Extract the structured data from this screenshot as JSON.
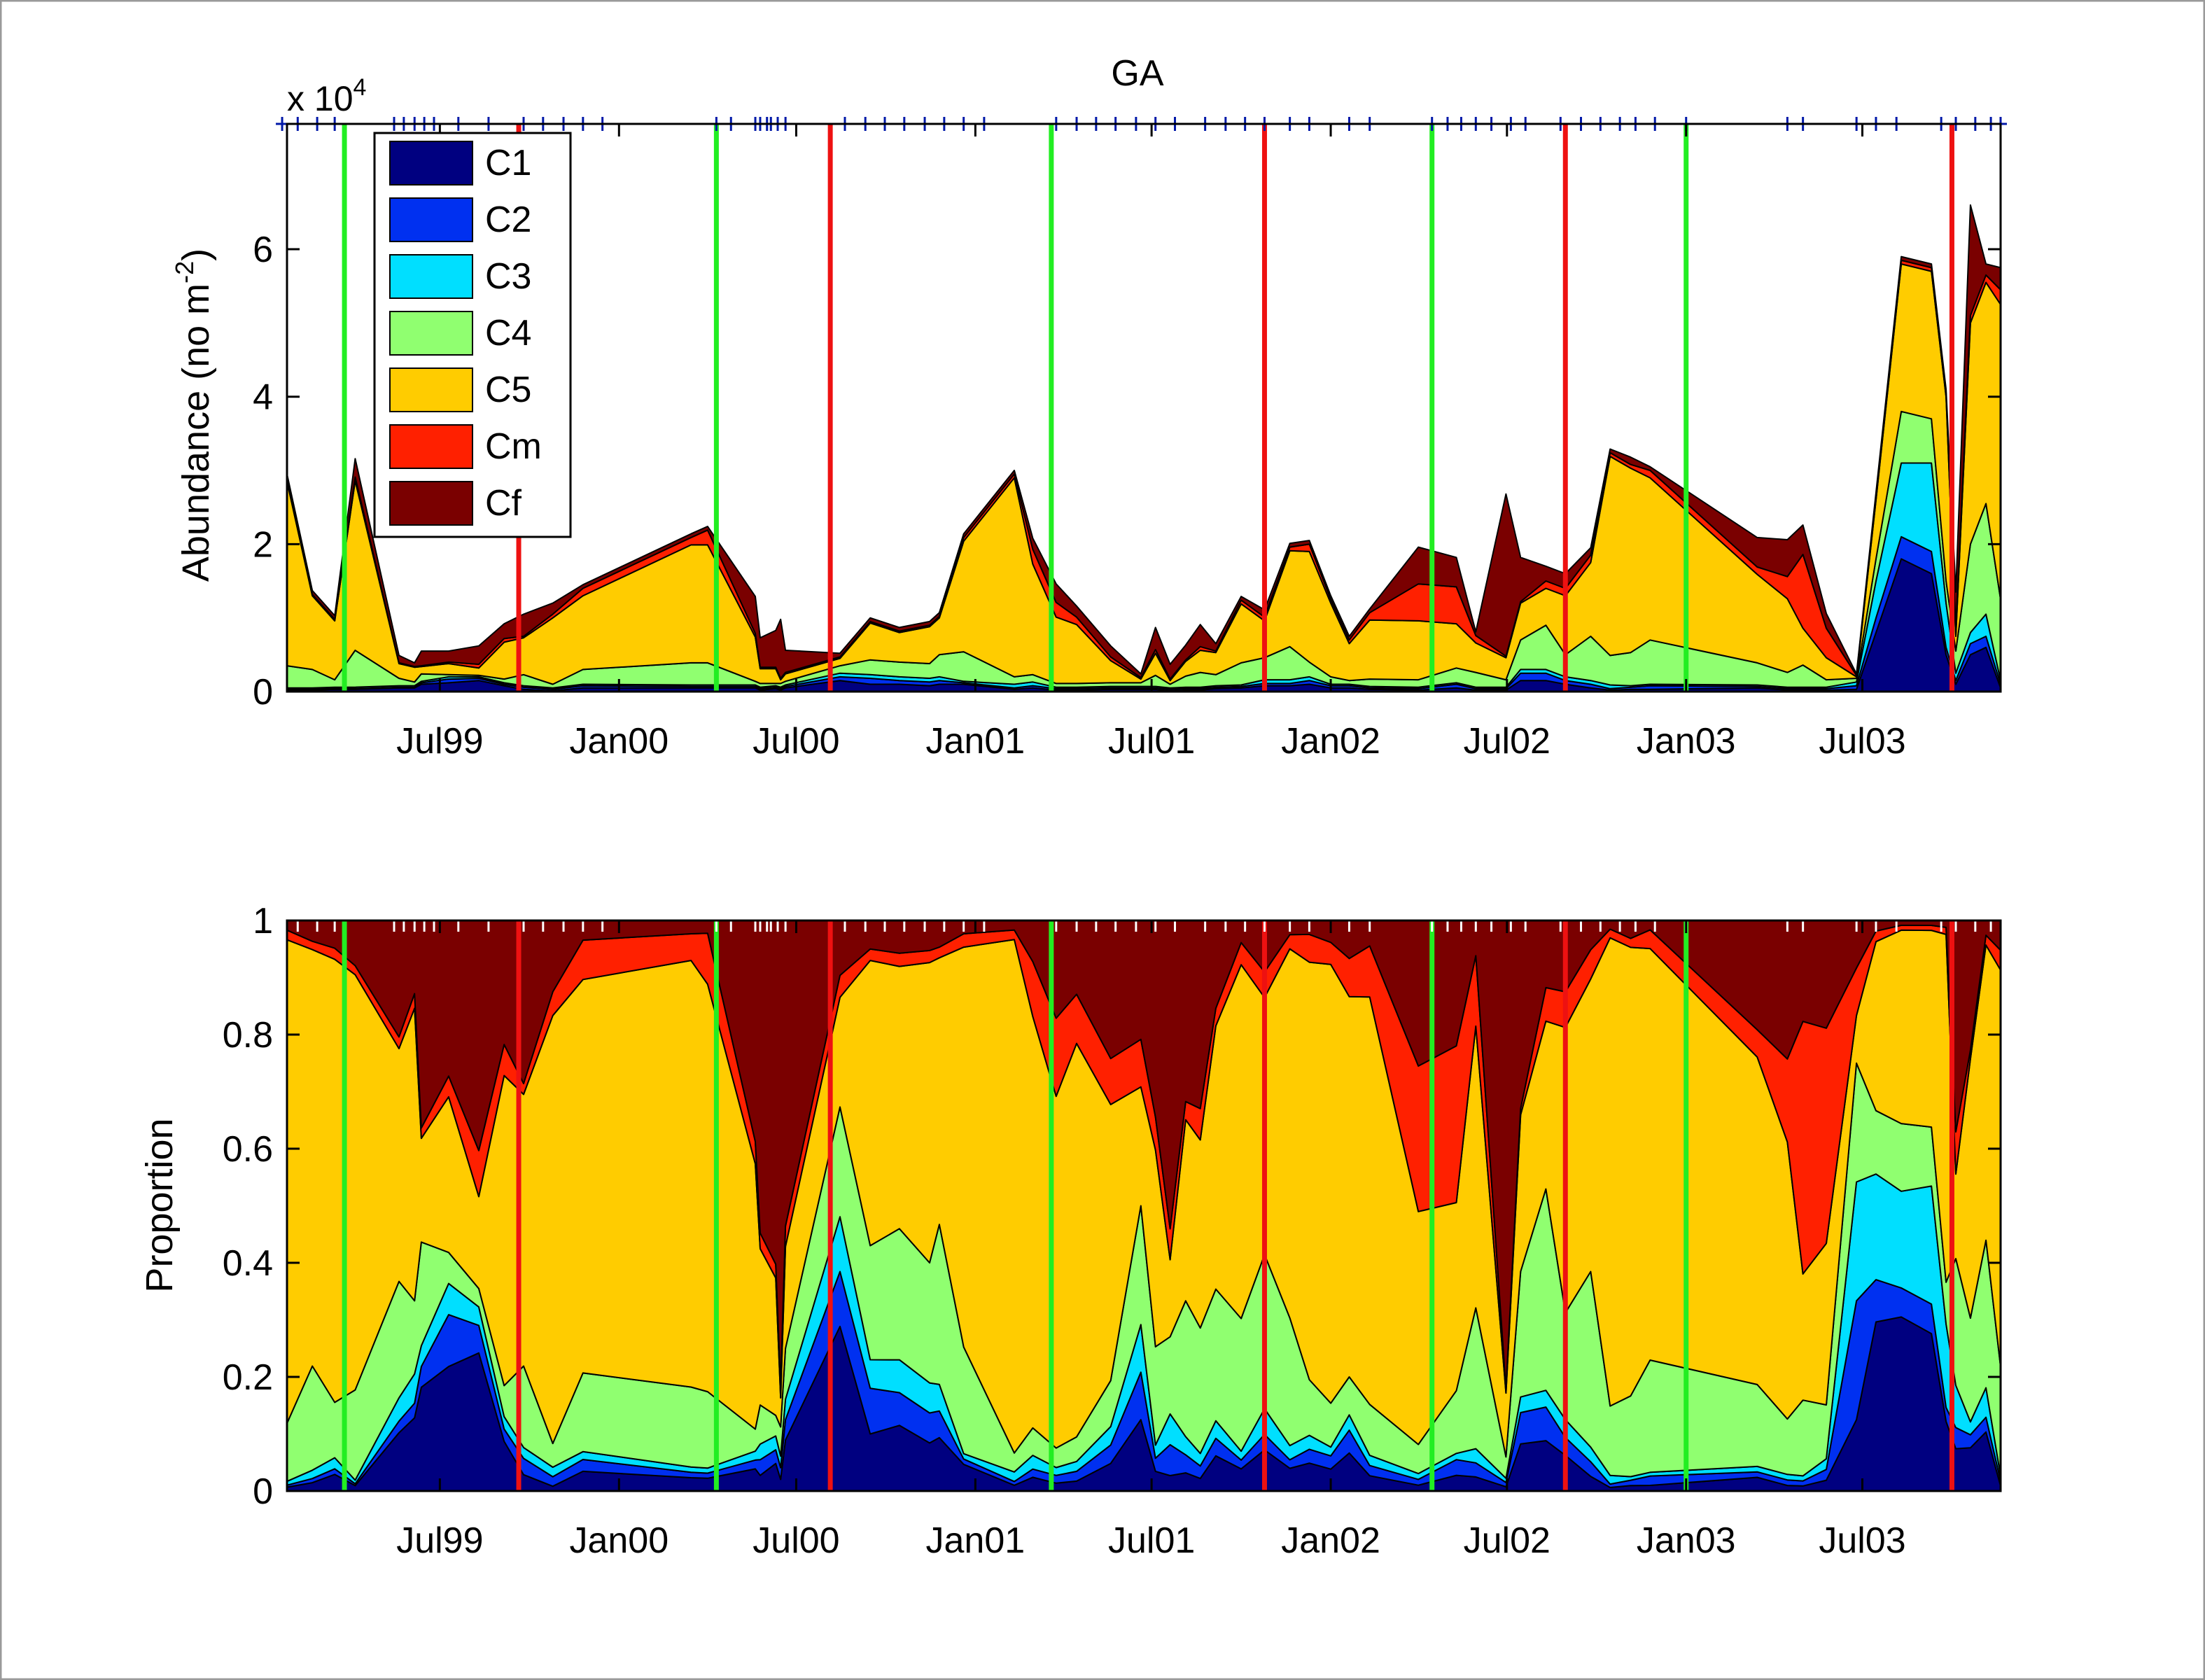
{
  "chart_data": [
    {
      "type": "area",
      "stacked": true,
      "title": "GA",
      "ylabel_main": "Abundance (no m",
      "ylabel_exp": "-2",
      "ylabel_close": ")",
      "exponent_prefix": "x 10",
      "exponent_power": "4",
      "x_range": [
        "1999-01-25",
        "2003-11-20"
      ],
      "ylim": [
        0,
        7.7
      ],
      "yticks": [
        0,
        2,
        4,
        6
      ],
      "ytick_labels": [
        "0",
        "2",
        "4",
        "6"
      ],
      "xticks": [
        "1999-07-01",
        "2000-01-01",
        "2000-07-01",
        "2001-01-01",
        "2001-07-01",
        "2002-01-01",
        "2002-07-01",
        "2003-01-01",
        "2003-07-01"
      ],
      "xtick_labels": [
        "Jul99",
        "Jan00",
        "Jul00",
        "Jan01",
        "Jul01",
        "Jan02",
        "Jul02",
        "Jan03",
        "Jul03"
      ],
      "x": [
        "1999-01-25",
        "1999-02-20",
        "1999-03-15",
        "1999-04-05",
        "1999-05-20",
        "1999-06-05",
        "1999-06-12",
        "1999-07-10",
        "1999-08-10",
        "1999-09-05",
        "1999-09-25",
        "1999-10-25",
        "1999-11-25",
        "2000-03-15",
        "2000-04-01",
        "2000-05-20",
        "2000-05-25",
        "2000-06-10",
        "2000-06-15",
        "2000-06-20",
        "2000-08-15",
        "2000-09-15",
        "2000-10-15",
        "2000-11-15",
        "2000-11-25",
        "2000-12-20",
        "2001-02-10",
        "2001-03-01",
        "2001-03-25",
        "2001-04-15",
        "2001-05-20",
        "2001-06-20",
        "2001-07-05",
        "2001-07-20",
        "2001-08-05",
        "2001-08-20",
        "2001-09-05",
        "2001-10-01",
        "2001-10-25",
        "2001-11-20",
        "2001-12-10",
        "2002-01-01",
        "2002-01-20",
        "2002-02-10",
        "2002-04-01",
        "2002-05-10",
        "2002-05-30",
        "2002-06-30",
        "2002-07-15",
        "2002-08-10",
        "2002-08-30",
        "2002-09-25",
        "2002-10-15",
        "2002-11-05",
        "2002-11-25",
        "2003-03-15",
        "2003-04-15",
        "2003-05-01",
        "2003-05-25",
        "2003-06-25",
        "2003-07-15",
        "2003-08-10",
        "2003-09-10",
        "2003-09-25",
        "2003-10-05",
        "2003-10-20",
        "2003-11-05",
        "2003-11-20"
      ],
      "series": [
        {
          "name": "C1",
          "color": "#000080",
          "values": [
            0.02,
            0.02,
            0.03,
            0.03,
            0.05,
            0.05,
            0.1,
            0.12,
            0.15,
            0.08,
            0.03,
            0.01,
            0.05,
            0.05,
            0.05,
            0.05,
            0.02,
            0.04,
            0.02,
            0.05,
            0.15,
            0.1,
            0.1,
            0.08,
            0.1,
            0.1,
            0.03,
            0.05,
            0.02,
            0.02,
            0.03,
            0.03,
            0.03,
            0.01,
            0.02,
            0.02,
            0.04,
            0.05,
            0.08,
            0.08,
            0.1,
            0.05,
            0.05,
            0.03,
            0.02,
            0.05,
            0.02,
            0.02,
            0.15,
            0.15,
            0.1,
            0.05,
            0.02,
            0.03,
            0.03,
            0.05,
            0.02,
            0.02,
            0.02,
            0.03,
            0.8,
            1.8,
            1.6,
            0.5,
            0.1,
            0.5,
            0.6,
            0.05
          ]
        },
        {
          "name": "C2",
          "color": "#0030f0",
          "values": [
            0.01,
            0.01,
            0.01,
            0.01,
            0.01,
            0.01,
            0.02,
            0.05,
            0.03,
            0.02,
            0.03,
            0.02,
            0.03,
            0.02,
            0.02,
            0.02,
            0.02,
            0.02,
            0.02,
            0.02,
            0.05,
            0.08,
            0.05,
            0.05,
            0.05,
            0.02,
            0.02,
            0.03,
            0.02,
            0.02,
            0.02,
            0.02,
            0.02,
            0.02,
            0.02,
            0.02,
            0.02,
            0.02,
            0.03,
            0.03,
            0.05,
            0.03,
            0.03,
            0.02,
            0.02,
            0.05,
            0.02,
            0.02,
            0.1,
            0.1,
            0.05,
            0.05,
            0.02,
            0.03,
            0.05,
            0.02,
            0.02,
            0.02,
            0.02,
            0.05,
            0.2,
            0.3,
            0.3,
            0.1,
            0.05,
            0.15,
            0.15,
            0.05
          ]
        },
        {
          "name": "C3",
          "color": "#00dfff",
          "values": [
            0.02,
            0.02,
            0.02,
            0.02,
            0.02,
            0.02,
            0.02,
            0.03,
            0.02,
            0.02,
            0.02,
            0.02,
            0.02,
            0.02,
            0.02,
            0.02,
            0.02,
            0.02,
            0.02,
            0.02,
            0.05,
            0.05,
            0.05,
            0.05,
            0.05,
            0.02,
            0.05,
            0.05,
            0.02,
            0.02,
            0.02,
            0.02,
            0.02,
            0.02,
            0.02,
            0.02,
            0.02,
            0.02,
            0.05,
            0.05,
            0.05,
            0.02,
            0.02,
            0.02,
            0.02,
            0.02,
            0.02,
            0.02,
            0.05,
            0.05,
            0.05,
            0.05,
            0.05,
            0.02,
            0.02,
            0.02,
            0.02,
            0.02,
            0.02,
            0.05,
            0.5,
            1.0,
            1.2,
            0.6,
            0.1,
            0.15,
            0.3,
            0.05
          ]
        },
        {
          "name": "C4",
          "color": "#90ff70",
          "values": [
            0.3,
            0.25,
            0.1,
            0.5,
            0.1,
            0.05,
            0.1,
            0.03,
            0.02,
            0.05,
            0.15,
            0.05,
            0.2,
            0.3,
            0.3,
            0.05,
            0.05,
            0.03,
            0.05,
            0.05,
            0.1,
            0.2,
            0.2,
            0.2,
            0.3,
            0.4,
            0.1,
            0.1,
            0.05,
            0.05,
            0.05,
            0.05,
            0.15,
            0.05,
            0.15,
            0.2,
            0.15,
            0.3,
            0.3,
            0.45,
            0.2,
            0.1,
            0.05,
            0.1,
            0.1,
            0.2,
            0.2,
            0.1,
            0.4,
            0.6,
            0.3,
            0.6,
            0.4,
            0.45,
            0.6,
            0.3,
            0.2,
            0.3,
            0.1,
            0.05,
            0.3,
            0.7,
            0.6,
            0.3,
            0.3,
            1.2,
            1.5,
            1.1
          ]
        },
        {
          "name": "C5",
          "color": "#ffcc00",
          "values": [
            2.5,
            1.0,
            0.8,
            2.3,
            0.2,
            0.2,
            0.1,
            0.15,
            0.1,
            0.5,
            0.5,
            0.9,
            1.0,
            1.6,
            1.6,
            0.6,
            0.2,
            0.2,
            0.05,
            0.1,
            0.1,
            0.5,
            0.4,
            0.5,
            0.5,
            1.5,
            2.7,
            1.5,
            0.9,
            0.8,
            0.3,
            0.05,
            0.3,
            0.05,
            0.2,
            0.3,
            0.3,
            0.8,
            0.5,
            1.3,
            1.5,
            1.0,
            0.5,
            0.8,
            0.8,
            0.6,
            0.4,
            0.3,
            0.5,
            0.5,
            0.8,
            1.0,
            2.7,
            2.5,
            2.2,
            1.2,
            1.0,
            0.5,
            0.3,
            0.02,
            0.8,
            2.0,
            2.0,
            2.5,
            0.2,
            3.0,
            3.0,
            4.0
          ]
        },
        {
          "name": "Cm",
          "color": "#ff2000",
          "values": [
            0.05,
            0.02,
            0.02,
            0.05,
            0.01,
            0.01,
            0.01,
            0.02,
            0.05,
            0.05,
            0.02,
            0.05,
            0.1,
            0.1,
            0.2,
            0.05,
            0.02,
            0.02,
            0.02,
            0.02,
            0.02,
            0.02,
            0.02,
            0.02,
            0.02,
            0.05,
            0.05,
            0.2,
            0.2,
            0.1,
            0.05,
            0.02,
            0.05,
            0.02,
            0.02,
            0.05,
            0.02,
            0.05,
            0.05,
            0.05,
            0.1,
            0.05,
            0.05,
            0.1,
            0.5,
            0.5,
            0.1,
            0.02,
            0.02,
            0.1,
            0.1,
            0.1,
            0.05,
            0.05,
            0.1,
            0.1,
            0.3,
            1.0,
            0.4,
            0.02,
            0.05,
            0.05,
            0.05,
            0.05,
            0.1,
            0.1,
            0.1,
            0.2
          ]
        },
        {
          "name": "Cf",
          "color": "#7a0000",
          "values": [
            0.05,
            0.05,
            0.05,
            0.25,
            0.1,
            0.05,
            0.2,
            0.15,
            0.25,
            0.2,
            0.3,
            0.15,
            0.05,
            0.05,
            0.05,
            0.5,
            0.4,
            0.5,
            0.8,
            0.3,
            0.05,
            0.05,
            0.05,
            0.05,
            0.05,
            0.05,
            0.05,
            0.15,
            0.25,
            0.15,
            0.15,
            0.05,
            0.3,
            0.2,
            0.2,
            0.3,
            0.1,
            0.05,
            0.1,
            0.05,
            0.05,
            0.05,
            0.05,
            0.05,
            0.5,
            0.4,
            0.05,
            2.2,
            0.6,
            0.2,
            0.2,
            0.1,
            0.05,
            0.1,
            0.05,
            0.4,
            0.5,
            0.4,
            0.2,
            0.02,
            0.05,
            0.05,
            0.05,
            0.05,
            0.5,
            1.5,
            0.15,
            0.3
          ]
        }
      ],
      "legend": {
        "placement": "top-left",
        "entries": [
          "C1",
          "C2",
          "C3",
          "C4",
          "C5",
          "Cm",
          "Cf"
        ]
      },
      "green_lines": [
        "1999-03-25",
        "2000-04-10",
        "2001-03-20",
        "2002-04-15",
        "2003-01-01"
      ],
      "red_lines": [
        "1999-09-20",
        "2000-08-05",
        "2001-10-25",
        "2002-08-30",
        "2003-10-01"
      ],
      "sample_dates_note": "top tick marks",
      "sample_dates": [
        "1999-01-20",
        "1999-02-05",
        "1999-02-25",
        "1999-03-15",
        "1999-05-15",
        "1999-05-25",
        "1999-06-05",
        "1999-06-15",
        "1999-06-25",
        "1999-07-20",
        "1999-08-20",
        "1999-09-25",
        "1999-10-15",
        "1999-11-05",
        "1999-11-25",
        "1999-12-15",
        "2000-04-10",
        "2000-04-25",
        "2000-05-20",
        "2000-05-25",
        "2000-06-01",
        "2000-06-05",
        "2000-06-12",
        "2000-06-20",
        "2000-08-20",
        "2000-09-10",
        "2000-09-30",
        "2000-10-20",
        "2000-11-10",
        "2000-11-30",
        "2000-12-20",
        "2001-01-10",
        "2001-03-25",
        "2001-04-15",
        "2001-05-05",
        "2001-05-25",
        "2001-06-15",
        "2001-07-05",
        "2001-07-25",
        "2001-08-25",
        "2001-09-15",
        "2001-10-05",
        "2001-10-25",
        "2001-11-20",
        "2001-12-10",
        "2002-01-20",
        "2002-02-10",
        "2002-04-15",
        "2002-05-01",
        "2002-05-15",
        "2002-05-30",
        "2002-06-15",
        "2002-07-05",
        "2002-07-20",
        "2002-08-25",
        "2002-09-15",
        "2002-10-05",
        "2002-10-25",
        "2002-11-10",
        "2002-11-30",
        "2003-01-01",
        "2003-04-15",
        "2003-05-01",
        "2003-06-25",
        "2003-07-15",
        "2003-08-05",
        "2003-09-20",
        "2003-10-05",
        "2003-10-25",
        "2003-11-10",
        "2003-11-20"
      ]
    },
    {
      "type": "area",
      "stacked": true,
      "normalized": true,
      "ylabel": "Proportion",
      "ylim": [
        0,
        1
      ],
      "yticks": [
        0,
        0.2,
        0.4,
        0.6,
        0.8,
        1
      ],
      "ytick_labels": [
        "0",
        "0.2",
        "0.4",
        "0.6",
        "0.8",
        "1"
      ],
      "xticks": [
        "1999-07-01",
        "2000-01-01",
        "2000-07-01",
        "2001-01-01",
        "2001-07-01",
        "2002-01-01",
        "2002-07-01",
        "2003-01-01",
        "2003-07-01"
      ],
      "xtick_labels": [
        "Jul99",
        "Jan00",
        "Jul00",
        "Jan01",
        "Jul01",
        "Jan02",
        "Jul02",
        "Jan03",
        "Jul03"
      ],
      "series_source": "same species series as abundance panel, shown as fraction of total"
    }
  ]
}
